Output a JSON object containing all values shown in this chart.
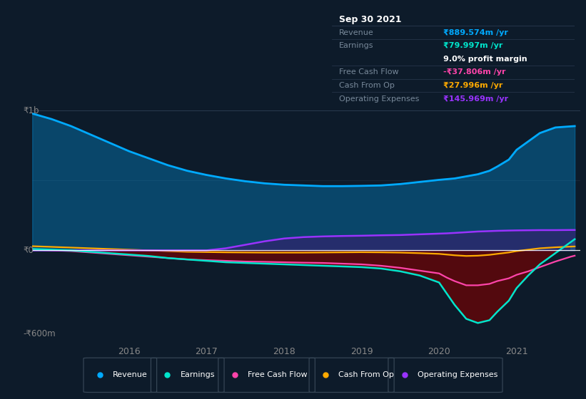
{
  "bg_color": "#0d1b2a",
  "plot_bg_color": "#0d1b2a",
  "revenue_color": "#00aaff",
  "earnings_color": "#00e5cc",
  "fcf_color": "#ff44aa",
  "cashfromop_color": "#ffaa00",
  "opex_color": "#9933ff",
  "legend_items": [
    {
      "label": "Revenue",
      "color": "#00aaff"
    },
    {
      "label": "Earnings",
      "color": "#00e5cc"
    },
    {
      "label": "Free Cash Flow",
      "color": "#ff44aa"
    },
    {
      "label": "Cash From Op",
      "color": "#ffaa00"
    },
    {
      "label": "Operating Expenses",
      "color": "#9933ff"
    }
  ],
  "info_box": {
    "date": "Sep 30 2021",
    "rows": [
      {
        "label": "Revenue",
        "value": "₹889.574m /yr",
        "color": "#00aaff",
        "extra": null,
        "extra_color": null
      },
      {
        "label": "Earnings",
        "value": "₹79.997m /yr",
        "color": "#00e5cc",
        "extra": "9.0% profit margin",
        "extra_color": "#ffffff"
      },
      {
        "label": "Free Cash Flow",
        "value": "-₹37.806m /yr",
        "color": "#ff44aa",
        "extra": null,
        "extra_color": null
      },
      {
        "label": "Cash From Op",
        "value": "₹27.996m /yr",
        "color": "#ffaa00",
        "extra": null,
        "extra_color": null
      },
      {
        "label": "Operating Expenses",
        "value": "₹145.969m /yr",
        "color": "#9933ff",
        "extra": null,
        "extra_color": null
      }
    ]
  },
  "years": [
    2014.75,
    2015.0,
    2015.25,
    2015.5,
    2015.75,
    2016.0,
    2016.25,
    2016.5,
    2016.75,
    2017.0,
    2017.25,
    2017.5,
    2017.75,
    2018.0,
    2018.25,
    2018.5,
    2018.75,
    2019.0,
    2019.25,
    2019.5,
    2019.75,
    2020.0,
    2020.1,
    2020.2,
    2020.35,
    2020.5,
    2020.65,
    2020.75,
    2020.9,
    2021.0,
    2021.15,
    2021.3,
    2021.5,
    2021.7,
    2021.75
  ],
  "revenue": [
    980,
    940,
    890,
    830,
    770,
    710,
    660,
    610,
    570,
    540,
    515,
    495,
    480,
    470,
    465,
    460,
    460,
    462,
    465,
    475,
    490,
    505,
    510,
    515,
    530,
    545,
    570,
    600,
    650,
    720,
    780,
    840,
    880,
    888,
    890
  ],
  "earnings": [
    10,
    5,
    0,
    -10,
    -20,
    -30,
    -40,
    -55,
    -65,
    -75,
    -85,
    -90,
    -95,
    -100,
    -105,
    -110,
    -115,
    -120,
    -130,
    -150,
    -180,
    -230,
    -310,
    -390,
    -490,
    -520,
    -500,
    -440,
    -360,
    -270,
    -180,
    -100,
    -20,
    60,
    80
  ],
  "fcf": [
    5,
    0,
    -5,
    -15,
    -25,
    -35,
    -45,
    -55,
    -65,
    -70,
    -75,
    -80,
    -82,
    -85,
    -88,
    -90,
    -95,
    -100,
    -110,
    -125,
    -145,
    -165,
    -195,
    -220,
    -250,
    -250,
    -240,
    -220,
    -200,
    -175,
    -150,
    -120,
    -80,
    -45,
    -38
  ],
  "cashfromop": [
    30,
    25,
    20,
    15,
    10,
    5,
    0,
    -5,
    -10,
    -12,
    -14,
    -15,
    -16,
    -16,
    -16,
    -15,
    -14,
    -13,
    -14,
    -16,
    -20,
    -25,
    -30,
    -35,
    -40,
    -38,
    -32,
    -25,
    -15,
    -5,
    5,
    15,
    22,
    27,
    28
  ],
  "opex": [
    0,
    0,
    0,
    0,
    0,
    0,
    0,
    0,
    0,
    0,
    15,
    40,
    65,
    85,
    95,
    100,
    103,
    105,
    108,
    110,
    115,
    120,
    122,
    125,
    130,
    135,
    138,
    140,
    142,
    143,
    144,
    145,
    145,
    146,
    146
  ],
  "xlim": [
    2014.75,
    2021.82
  ],
  "ylim": [
    -650,
    1050
  ],
  "y_ticks_pos": [
    1000,
    0,
    -600
  ],
  "y_tick_labels": [
    "₹1b",
    "₹0",
    "-₹600m"
  ],
  "x_ticks": [
    2016,
    2017,
    2018,
    2019,
    2020,
    2021
  ]
}
